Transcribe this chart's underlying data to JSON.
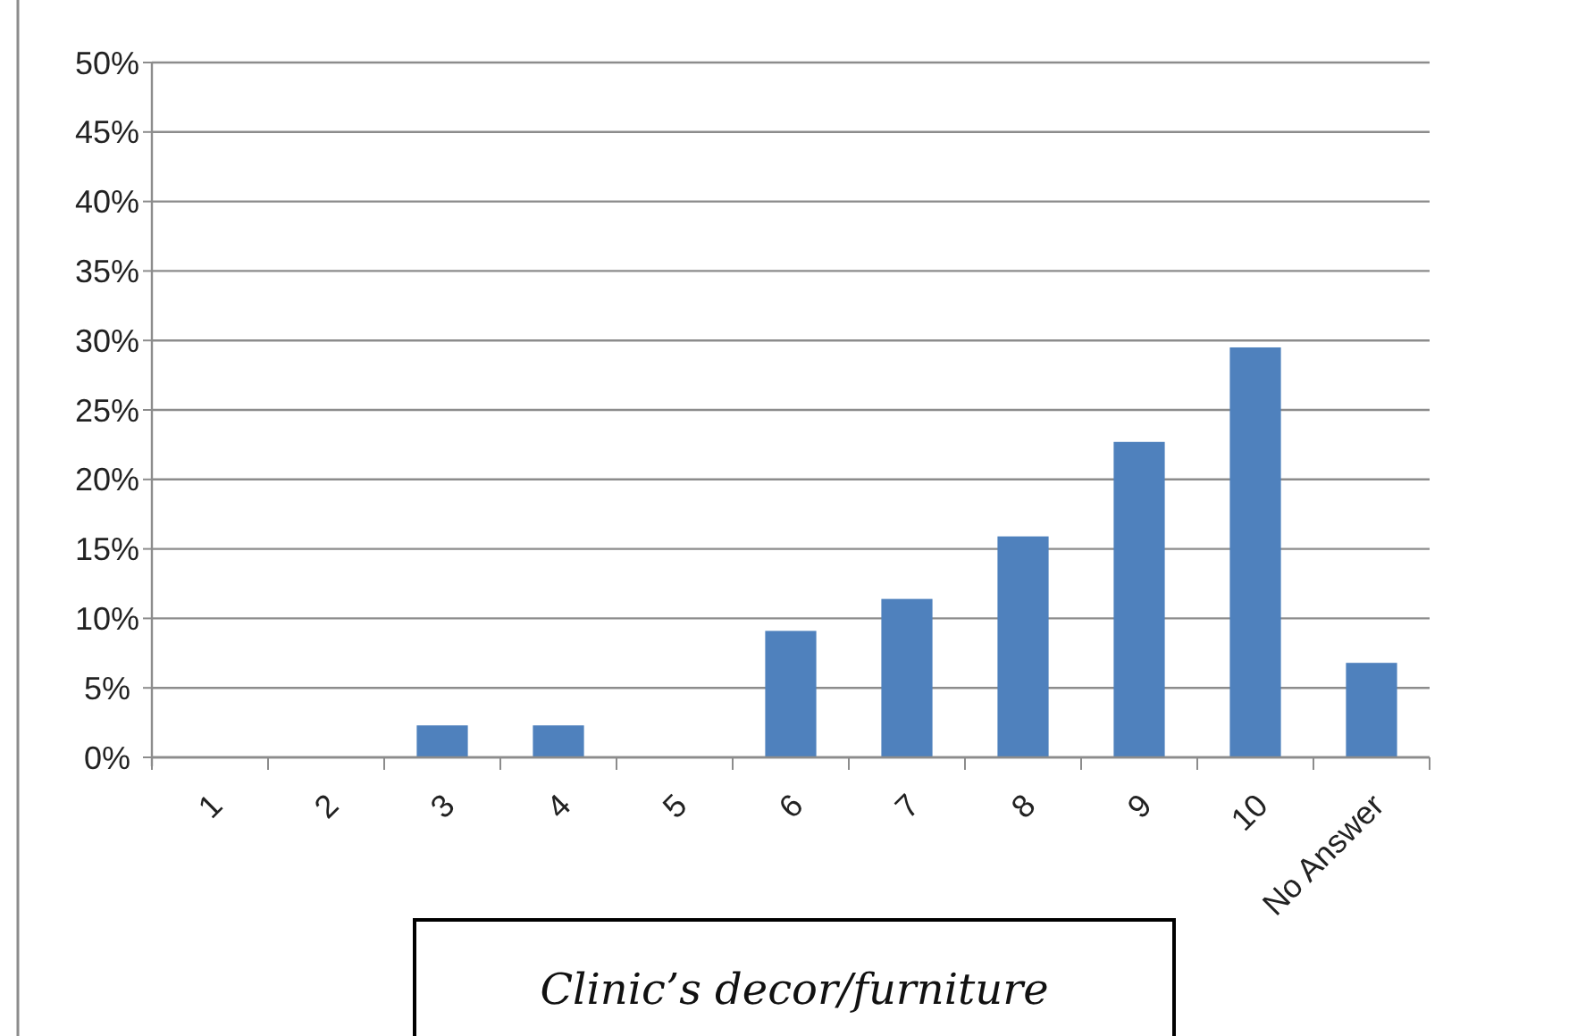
{
  "chart_data": {
    "type": "bar",
    "title": "Clinic’s decor/furniture",
    "categories": [
      "1",
      "2",
      "3",
      "4",
      "5",
      "6",
      "7",
      "8",
      "9",
      "10",
      "No Answer"
    ],
    "values": [
      0,
      0,
      2.3,
      2.3,
      0,
      9.1,
      11.4,
      15.9,
      22.7,
      29.5,
      6.8
    ],
    "color": "#4f81bd",
    "ylim": [
      0,
      50
    ],
    "yticks": [
      {
        "value": 0,
        "label": "0%"
      },
      {
        "value": 5,
        "label": "5%"
      },
      {
        "value": 10,
        "label": "10%"
      },
      {
        "value": 15,
        "label": "15%"
      },
      {
        "value": 20,
        "label": "20%"
      },
      {
        "value": 25,
        "label": "25%"
      },
      {
        "value": 30,
        "label": "30%"
      },
      {
        "value": 35,
        "label": "35%"
      },
      {
        "value": 40,
        "label": "40%"
      },
      {
        "value": 45,
        "label": "45%"
      },
      {
        "value": 50,
        "label": "50%"
      }
    ],
    "grid": "y"
  }
}
